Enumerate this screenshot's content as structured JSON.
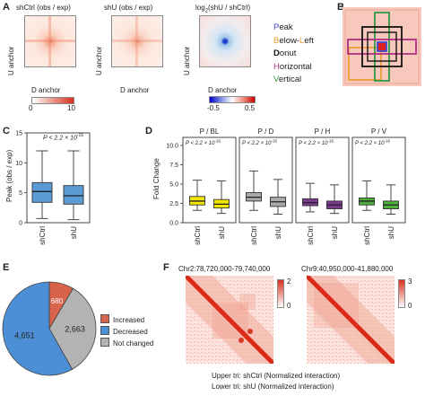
{
  "panels": {
    "A": "A",
    "B": "B",
    "C": "C",
    "D": "D",
    "E": "E",
    "F": "F"
  },
  "panelA": {
    "maps": [
      {
        "title": "shCtrl (obs / exp)"
      },
      {
        "title": "shU (obs / exp)"
      },
      {
        "title_prefix": "log",
        "title_sub": "2",
        "title_suffix": "(shU / shCtrl)"
      }
    ],
    "y_label": "U anchor",
    "x_label": "D anchor",
    "cbar1": {
      "min": "0",
      "max": "10",
      "colors": [
        "#ffffff",
        "#d7301f"
      ]
    },
    "cbar2": {
      "min": "-0.5",
      "max": "0.5",
      "mid": "0",
      "colors": [
        "#0000cc",
        "#ffffff",
        "#cc0000"
      ]
    }
  },
  "panelB": {
    "legend": [
      {
        "first": "P",
        "rest": "eak",
        "color": "#3b4bd4"
      },
      {
        "first": "B",
        "rest": "elow-",
        "first2": "L",
        "rest2": "eft",
        "color": "#e9a13a"
      },
      {
        "first": "D",
        "rest": "onut",
        "color": "#111111"
      },
      {
        "first": "H",
        "rest": "orizontal",
        "color": "#b03080"
      },
      {
        "first": "V",
        "rest": "ertical",
        "color": "#2e9a46"
      }
    ]
  },
  "panelC": {
    "pvalue_prefix": "P < 2.2 × 10",
    "pvalue_exp": "-16",
    "ylabel": "Peak (obs / exp)",
    "categories": [
      "shCtrl",
      "shU"
    ],
    "ticks": [
      "0",
      "5",
      "10",
      "15"
    ]
  },
  "panelD": {
    "ylabel": "Fold Change",
    "ticks": [
      "0.0",
      "2.5",
      "5.0",
      "7.5",
      "10.0"
    ],
    "groups": [
      {
        "title": "P / BL",
        "color": "#f2e600",
        "categories": [
          "shCtrl",
          "shU"
        ]
      },
      {
        "title": "P / D",
        "color": "#aaaaaa",
        "categories": [
          "shCtrl",
          "shU"
        ]
      },
      {
        "title": "P / H",
        "color": "#7b3a8e",
        "categories": [
          "shCtrl",
          "shU"
        ]
      },
      {
        "title": "P / V",
        "color": "#4fae3b",
        "categories": [
          "shCtrl",
          "shU"
        ]
      }
    ],
    "pvalue_prefix": "P < 2.2 × 10",
    "pvalue_exp": "-16"
  },
  "panelE": {
    "legend": [
      {
        "label": "Increased",
        "color": "#d9634a"
      },
      {
        "label": "Decreased",
        "color": "#4d8fd6"
      },
      {
        "label": "Not changed",
        "color": "#b3b3b3"
      }
    ]
  },
  "panelF": {
    "maps": [
      {
        "title": "Chr2:78,720,000-79,740,000",
        "cbar_max": "2",
        "cbar_min": "0"
      },
      {
        "title": "Chr9:40,950,000-41,880,000",
        "cbar_max": "3",
        "cbar_min": "0"
      }
    ],
    "caption1": "Upper tri: shCtrl (Normalized interaction)",
    "caption2": "Lower tri: shU (Normalized interaction)"
  },
  "chart_data": [
    {
      "type": "box",
      "panel": "C",
      "ylabel": "Peak (obs / exp)",
      "ylim": [
        0,
        15
      ],
      "categories": [
        "shCtrl",
        "shU"
      ],
      "series": [
        {
          "min": 0.7,
          "q1": 3.4,
          "median": 5.2,
          "q3": 6.7,
          "max": 12.0
        },
        {
          "min": 0.5,
          "q1": 3.1,
          "median": 4.5,
          "q3": 6.2,
          "max": 12.0
        }
      ],
      "color": "#5b9bd5"
    },
    {
      "type": "box",
      "panel": "D",
      "ylabel": "Fold Change",
      "ylim": [
        0,
        10
      ],
      "groups": [
        {
          "title": "P / BL",
          "categories": [
            "shCtrl",
            "shU"
          ],
          "series": [
            {
              "min": 1.6,
              "q1": 2.3,
              "median": 2.8,
              "q3": 3.4,
              "max": 5.5
            },
            {
              "min": 1.2,
              "q1": 1.9,
              "median": 2.4,
              "q3": 3.0,
              "max": 5.4
            }
          ]
        },
        {
          "title": "P / D",
          "categories": [
            "shCtrl",
            "shU"
          ],
          "series": [
            {
              "min": 1.6,
              "q1": 2.8,
              "median": 3.3,
              "q3": 3.9,
              "max": 6.7
            },
            {
              "min": 1.1,
              "q1": 2.1,
              "median": 2.7,
              "q3": 3.3,
              "max": 5.6
            }
          ]
        },
        {
          "title": "P / H",
          "categories": [
            "shCtrl",
            "shU"
          ],
          "series": [
            {
              "min": 1.4,
              "q1": 2.2,
              "median": 2.6,
              "q3": 3.1,
              "max": 5.1
            },
            {
              "min": 1.2,
              "q1": 1.8,
              "median": 2.3,
              "q3": 2.8,
              "max": 4.9
            }
          ]
        },
        {
          "title": "P / V",
          "categories": [
            "shCtrl",
            "shU"
          ],
          "series": [
            {
              "min": 1.6,
              "q1": 2.3,
              "median": 2.8,
              "q3": 3.2,
              "max": 5.4
            },
            {
              "min": 1.1,
              "q1": 1.8,
              "median": 2.3,
              "q3": 2.8,
              "max": 4.9
            }
          ]
        }
      ]
    },
    {
      "type": "pie",
      "panel": "E",
      "labels": [
        "Increased",
        "Decreased",
        "Not changed"
      ],
      "values": [
        680,
        4651,
        2663
      ],
      "value_labels": [
        "680",
        "4,651",
        "2,663"
      ],
      "colors": [
        "#d9634a",
        "#4d8fd6",
        "#b3b3b3"
      ]
    }
  ]
}
